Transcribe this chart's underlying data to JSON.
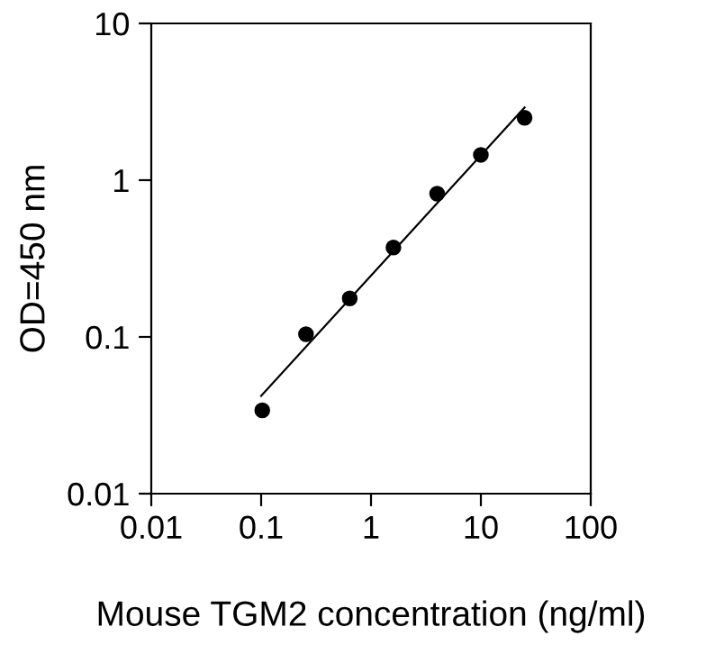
{
  "chart_data": {
    "type": "scatter",
    "xlabel": "Mouse TGM2 concentration (ng/ml)",
    "ylabel": "OD=450 nm",
    "log": "xy",
    "xlim": [
      0.01,
      100
    ],
    "xticks": [
      0.01,
      0.1,
      1,
      10,
      100
    ],
    "ylim": [
      0.01,
      10
    ],
    "yticks": [
      0.01,
      0.1,
      1,
      10
    ],
    "grid": false,
    "legend": false,
    "series": [
      {
        "marker": "circle",
        "color": "#000000",
        "x": [
          0.1024,
          0.256,
          0.64,
          1.6,
          4,
          10,
          25
        ],
        "values": [
          0.034,
          0.104,
          0.176,
          0.372,
          0.82,
          1.45,
          2.5
        ]
      },
      {
        "type": "line",
        "color": "#000000",
        "line_style": "solid",
        "x": [
          0.1,
          25
        ],
        "values": [
          0.042,
          2.91
        ]
      }
    ]
  }
}
